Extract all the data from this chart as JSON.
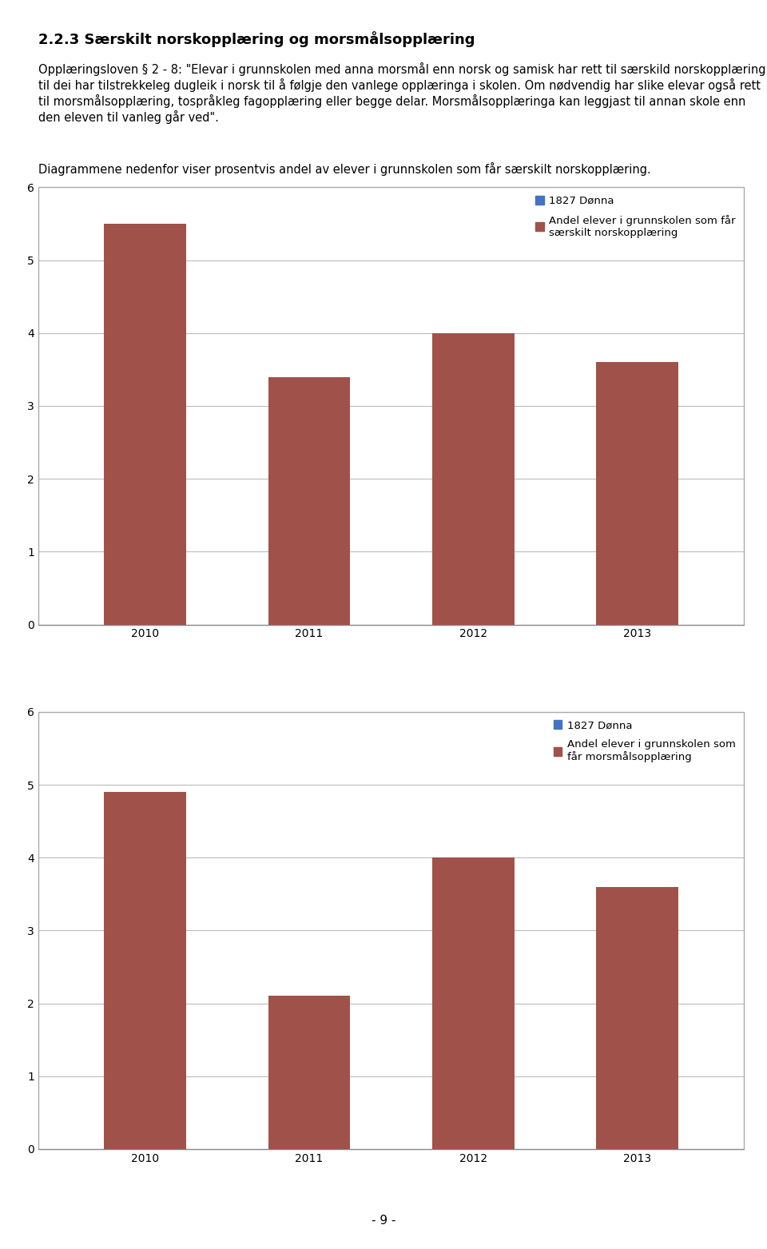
{
  "page_title": "2.2.3 Særskilt norskopplæring og morsmålsopplæring",
  "body_lines": [
    "Opplæringsloven § 2 - 8: \"Elevar i grunnskolen med anna morsmål enn norsk og samisk har rett til særskild norskopplæring til dei har tilstrekkeleg dugleik i norsk til å følgje den vanlege opplæringa i skolen. Om nødvendig har slike elevar også rett til morsmålsopplæring, tospråkleg fagopplæring eller begge delar. Morsmålsopplæringa kan leggjast til annan skole enn den eleven til vanleg går ved\".",
    "Diagrammene nedenfor viser prosentvis andel av elever i grunnskolen som får særskilt norskopplæring."
  ],
  "chart1": {
    "years": [
      "2010",
      "2011",
      "2012",
      "2013"
    ],
    "values": [
      5.5,
      3.4,
      4.0,
      3.6
    ],
    "bar_color": "#A0524A",
    "legend1_color": "#4472C4",
    "legend1_label": "1827 Dønna",
    "legend2_color": "#A0524A",
    "legend2_label": "Andel elever i grunnskolen som får\nsærskilt norskopplæring",
    "ylim": [
      0,
      6
    ],
    "yticks": [
      0,
      1,
      2,
      3,
      4,
      5,
      6
    ]
  },
  "chart2": {
    "years": [
      "2010",
      "2011",
      "2012",
      "2013"
    ],
    "values": [
      4.9,
      2.1,
      4.0,
      3.6
    ],
    "bar_color": "#A0524A",
    "legend1_color": "#4472C4",
    "legend1_label": "1827 Dønna",
    "legend2_color": "#A0524A",
    "legend2_label": "Andel elever i grunnskolen som\nfår morsmålsopplæring",
    "ylim": [
      0,
      6
    ],
    "yticks": [
      0,
      1,
      2,
      3,
      4,
      5,
      6
    ]
  },
  "bg_color": "#FFFFFF",
  "grid_color": "#BBBBBB",
  "font_size_title": 13,
  "font_size_body": 10.5,
  "font_size_tick": 10,
  "font_size_legend": 9.5,
  "page_number": "- 9 -"
}
